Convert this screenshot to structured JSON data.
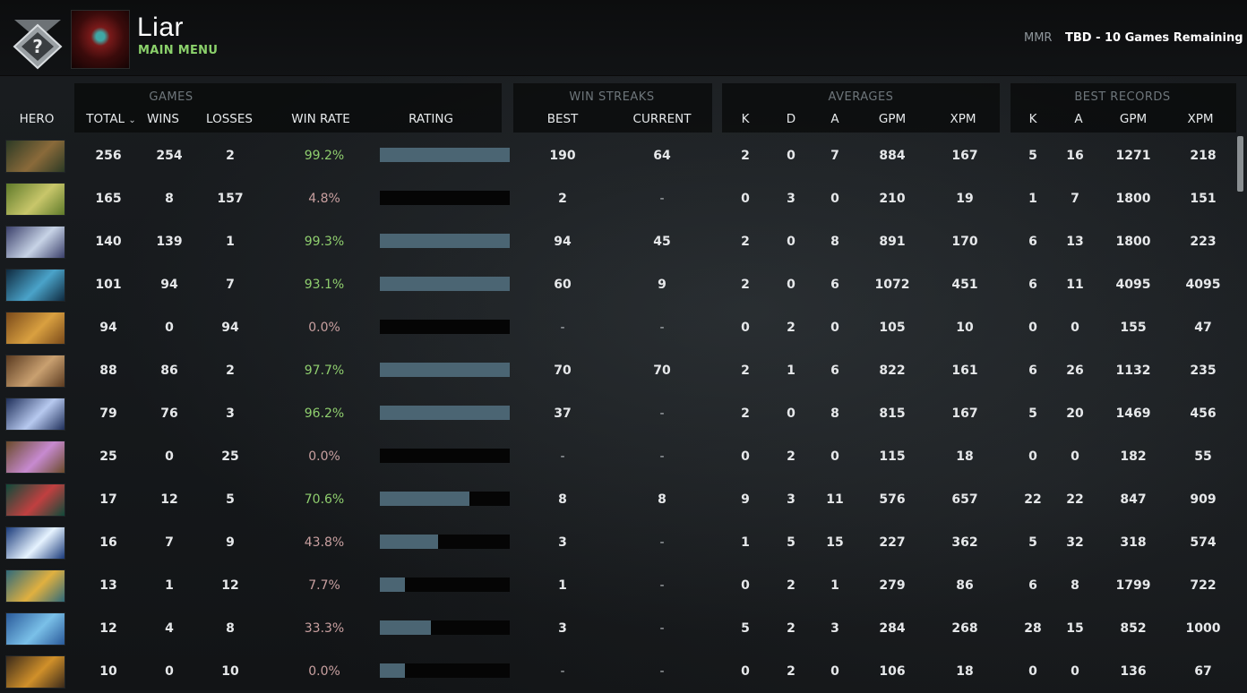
{
  "header": {
    "username": "Liar",
    "subtitle": "MAIN MENU",
    "mmr_label": "MMR",
    "mmr_value": "TBD - 10 Games Remaining",
    "avatar_icon": "hero-avatar-icon",
    "rank_icon": "unknown-rank-badge-icon"
  },
  "groups": {
    "games": "GAMES",
    "win_streaks": "WIN STREAKS",
    "averages": "AVERAGES",
    "best_records": "BEST RECORDS"
  },
  "columns": {
    "hero": "HERO",
    "total": "TOTAL",
    "total_sort": "⌄",
    "wins": "WINS",
    "losses": "LOSSES",
    "win_rate": "WIN RATE",
    "rating": "RATING",
    "best": "BEST",
    "current": "CURRENT",
    "avg_k": "K",
    "avg_d": "D",
    "avg_a": "A",
    "avg_gpm": "GPM",
    "avg_xpm": "XPM",
    "rec_k": "K",
    "rec_a": "A",
    "rec_gpm": "GPM",
    "rec_xpm": "XPM"
  },
  "colors": {
    "win_rate_high": "#8fce6e",
    "win_rate_low": "#c9a0a0",
    "bar_fill": "#4b6573"
  },
  "rows": [
    {
      "hero_icon": "hero-portrait-1",
      "colors": [
        "#2c3a25",
        "#8a6a3a"
      ],
      "total": "256",
      "wins": "254",
      "losses": "2",
      "win_rate": "99.2%",
      "rating": 1.0,
      "best": "190",
      "current": "64",
      "k": "2",
      "d": "0",
      "a": "7",
      "gpm": "884",
      "xpm": "167",
      "rk": "5",
      "ra": "16",
      "rgpm": "1271",
      "rxpm": "218"
    },
    {
      "hero_icon": "hero-portrait-2",
      "colors": [
        "#5f7a2a",
        "#c8c66a"
      ],
      "total": "165",
      "wins": "8",
      "losses": "157",
      "win_rate": "4.8%",
      "rating": 0.0,
      "best": "2",
      "current": "-",
      "k": "0",
      "d": "3",
      "a": "0",
      "gpm": "210",
      "xpm": "19",
      "rk": "1",
      "ra": "7",
      "rgpm": "1800",
      "rxpm": "151"
    },
    {
      "hero_icon": "hero-portrait-3",
      "colors": [
        "#3a3f6a",
        "#c7d3e6"
      ],
      "total": "140",
      "wins": "139",
      "losses": "1",
      "win_rate": "99.3%",
      "rating": 1.0,
      "best": "94",
      "current": "45",
      "k": "2",
      "d": "0",
      "a": "8",
      "gpm": "891",
      "xpm": "170",
      "rk": "6",
      "ra": "13",
      "rgpm": "1800",
      "rxpm": "223"
    },
    {
      "hero_icon": "hero-portrait-4",
      "colors": [
        "#0f2a3f",
        "#4aa3c9"
      ],
      "total": "101",
      "wins": "94",
      "losses": "7",
      "win_rate": "93.1%",
      "rating": 1.0,
      "best": "60",
      "current": "9",
      "k": "2",
      "d": "0",
      "a": "6",
      "gpm": "1072",
      "xpm": "451",
      "rk": "6",
      "ra": "11",
      "rgpm": "4095",
      "rxpm": "4095"
    },
    {
      "hero_icon": "hero-portrait-5",
      "colors": [
        "#7a4a1a",
        "#d9a040"
      ],
      "total": "94",
      "wins": "0",
      "losses": "94",
      "win_rate": "0.0%",
      "rating": 0.0,
      "best": "-",
      "current": "-",
      "k": "0",
      "d": "2",
      "a": "0",
      "gpm": "105",
      "xpm": "10",
      "rk": "0",
      "ra": "0",
      "rgpm": "155",
      "rxpm": "47"
    },
    {
      "hero_icon": "hero-portrait-6",
      "colors": [
        "#5a3a20",
        "#c9a070"
      ],
      "total": "88",
      "wins": "86",
      "losses": "2",
      "win_rate": "97.7%",
      "rating": 1.0,
      "best": "70",
      "current": "70",
      "k": "2",
      "d": "1",
      "a": "6",
      "gpm": "822",
      "xpm": "161",
      "rk": "6",
      "ra": "26",
      "rgpm": "1132",
      "rxpm": "235"
    },
    {
      "hero_icon": "hero-portrait-7",
      "colors": [
        "#1f2f5a",
        "#b7c9ef"
      ],
      "total": "79",
      "wins": "76",
      "losses": "3",
      "win_rate": "96.2%",
      "rating": 1.0,
      "best": "37",
      "current": "-",
      "k": "2",
      "d": "0",
      "a": "8",
      "gpm": "815",
      "xpm": "167",
      "rk": "5",
      "ra": "20",
      "rgpm": "1469",
      "rxpm": "456"
    },
    {
      "hero_icon": "hero-portrait-8",
      "colors": [
        "#6a4a2a",
        "#c78ad0"
      ],
      "total": "25",
      "wins": "0",
      "losses": "25",
      "win_rate": "0.0%",
      "rating": 0.0,
      "best": "-",
      "current": "-",
      "k": "0",
      "d": "2",
      "a": "0",
      "gpm": "115",
      "xpm": "18",
      "rk": "0",
      "ra": "0",
      "rgpm": "182",
      "rxpm": "55"
    },
    {
      "hero_icon": "hero-portrait-9",
      "colors": [
        "#0f4a3a",
        "#c04040"
      ],
      "total": "17",
      "wins": "12",
      "losses": "5",
      "win_rate": "70.6%",
      "rating": 0.69,
      "best": "8",
      "current": "8",
      "k": "9",
      "d": "3",
      "a": "11",
      "gpm": "576",
      "xpm": "657",
      "rk": "22",
      "ra": "22",
      "rgpm": "847",
      "rxpm": "909"
    },
    {
      "hero_icon": "hero-portrait-10",
      "colors": [
        "#1a3a7a",
        "#e6f3ff"
      ],
      "total": "16",
      "wins": "7",
      "losses": "9",
      "win_rate": "43.8%",
      "rating": 0.45,
      "best": "3",
      "current": "-",
      "k": "1",
      "d": "5",
      "a": "15",
      "gpm": "227",
      "xpm": "362",
      "rk": "5",
      "ra": "32",
      "rgpm": "318",
      "rxpm": "574"
    },
    {
      "hero_icon": "hero-portrait-11",
      "colors": [
        "#2f6a7a",
        "#e0b040"
      ],
      "total": "13",
      "wins": "1",
      "losses": "12",
      "win_rate": "7.7%",
      "rating": 0.19,
      "best": "1",
      "current": "-",
      "k": "0",
      "d": "2",
      "a": "1",
      "gpm": "279",
      "xpm": "86",
      "rk": "6",
      "ra": "8",
      "rgpm": "1799",
      "rxpm": "722"
    },
    {
      "hero_icon": "hero-portrait-12",
      "colors": [
        "#2a5a9a",
        "#7ac0e8"
      ],
      "total": "12",
      "wins": "4",
      "losses": "8",
      "win_rate": "33.3%",
      "rating": 0.39,
      "best": "3",
      "current": "-",
      "k": "5",
      "d": "2",
      "a": "3",
      "gpm": "284",
      "xpm": "268",
      "rk": "28",
      "ra": "15",
      "rgpm": "852",
      "rxpm": "1000"
    },
    {
      "hero_icon": "hero-portrait-13",
      "colors": [
        "#3a2a1a",
        "#d0902a"
      ],
      "total": "10",
      "wins": "0",
      "losses": "10",
      "win_rate": "0.0%",
      "rating": 0.19,
      "best": "-",
      "current": "-",
      "k": "0",
      "d": "2",
      "a": "0",
      "gpm": "106",
      "xpm": "18",
      "rk": "0",
      "ra": "0",
      "rgpm": "136",
      "rxpm": "67"
    }
  ]
}
